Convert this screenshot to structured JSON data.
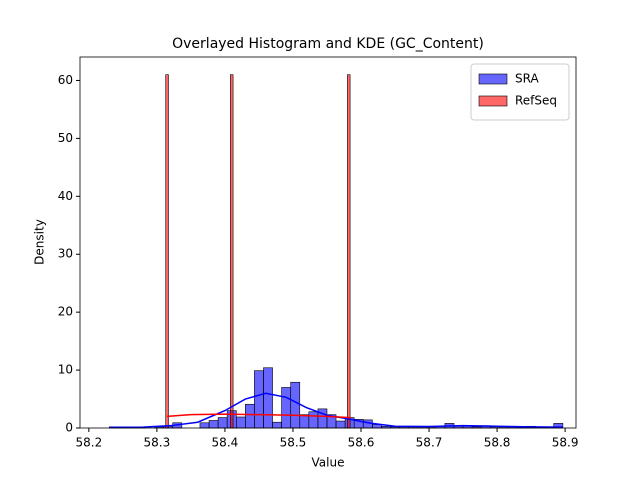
{
  "chart_data": {
    "type": "histogram",
    "title": "Overlayed Histogram and KDE (GC_Content)",
    "xlabel": "Value",
    "ylabel": "Density",
    "xlim": [
      58.187,
      58.916
    ],
    "xticks": [
      58.2,
      58.3,
      58.4,
      58.5,
      58.6,
      58.7,
      58.8,
      58.9
    ],
    "ylim": [
      0,
      64.05
    ],
    "yticks": [
      0,
      10,
      20,
      30,
      40,
      50,
      60
    ],
    "legend": "upper right",
    "series": [
      {
        "name": "SRA",
        "color": "#0000ff",
        "bins": [
          58.23,
          58.2433,
          58.2567,
          58.27,
          58.2833,
          58.2967,
          58.31,
          58.3233,
          58.3367,
          58.35,
          58.3633,
          58.3767,
          58.39,
          58.4033,
          58.4167,
          58.43,
          58.4433,
          58.4567,
          58.47,
          58.4833,
          58.4967,
          58.51,
          58.5233,
          58.5367,
          58.55,
          58.5633,
          58.5767,
          58.59,
          58.6033,
          58.6167,
          58.63,
          58.6433,
          58.6567,
          58.67,
          58.6833,
          58.6967,
          58.71,
          58.7233,
          58.7367,
          58.75,
          58.7633,
          58.7767,
          58.79,
          58.8033,
          58.8167,
          58.83,
          58.8433,
          58.8567,
          58.87,
          58.8833,
          58.8967
        ],
        "values": [
          0.2,
          0.2,
          0.2,
          0.2,
          0,
          0.2,
          0.3,
          0.9,
          0,
          0,
          0.9,
          1.3,
          1.8,
          3.0,
          1.9,
          4.1,
          9.9,
          10.4,
          1.0,
          7.0,
          7.9,
          2.3,
          2.8,
          3.3,
          2.3,
          1.2,
          1.8,
          1.5,
          1.4,
          0.6,
          0.3,
          0.2,
          0.2,
          0.2,
          0.2,
          0.2,
          0.3,
          0.8,
          0.3,
          0.3,
          0.2,
          0.4,
          0.2,
          0.2,
          0.3,
          0.2,
          0.3,
          0.2,
          0.2,
          0.8
        ],
        "kde": {
          "x": [
            58.23,
            58.28,
            58.32,
            58.36,
            58.4,
            58.43,
            58.46,
            58.49,
            58.52,
            58.55,
            58.58,
            58.61,
            58.65,
            58.7,
            58.75,
            58.8,
            58.85,
            58.897
          ],
          "values": [
            0.1,
            0.15,
            0.4,
            1.0,
            3.0,
            5.0,
            6.0,
            5.3,
            3.5,
            2.2,
            1.6,
            0.9,
            0.3,
            0.25,
            0.4,
            0.3,
            0.2,
            0.15
          ]
        }
      },
      {
        "name": "RefSeq",
        "color": "#ff0000",
        "bins": [
          58.313,
          58.317,
          58.408,
          58.412,
          58.58,
          58.584
        ],
        "values": [
          61,
          0,
          61,
          0,
          61
        ],
        "kde": {
          "x": [
            58.315,
            58.35,
            58.4,
            58.45,
            58.5,
            58.55,
            58.585
          ],
          "values": [
            2.0,
            2.3,
            2.4,
            2.3,
            2.2,
            2.0,
            1.8
          ]
        }
      }
    ]
  }
}
